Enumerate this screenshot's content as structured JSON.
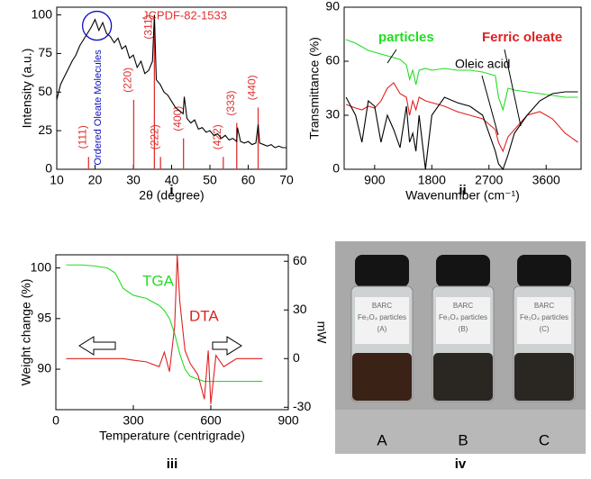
{
  "chart_data": [
    {
      "type": "line",
      "panel": "i",
      "xlabel": "2θ (degree)",
      "ylabel": "Intensity (a.u.)",
      "xlim": [
        10,
        70
      ],
      "xticks": [
        10,
        20,
        30,
        40,
        50,
        60,
        70
      ],
      "ylim": [
        0,
        105
      ],
      "yticks": [
        0,
        25,
        50,
        75,
        100
      ],
      "annotations": [
        "JCPDF-82-1533",
        "Ordered Oleate Molecules"
      ],
      "x": [
        10,
        11,
        12,
        13,
        14,
        15,
        16,
        17,
        18,
        19,
        20,
        21,
        22,
        23,
        24,
        25,
        26,
        27,
        28,
        29,
        30,
        31,
        32,
        33,
        34,
        35,
        35.5,
        36,
        37,
        38,
        39,
        40,
        41,
        42,
        43,
        43.3,
        44,
        45,
        46,
        47,
        48,
        49,
        50,
        51,
        52,
        53,
        54,
        55,
        56,
        57,
        57.2,
        58,
        59,
        60,
        61,
        62,
        62.6,
        63,
        64,
        65,
        66,
        67,
        68,
        69,
        70
      ],
      "series": [
        {
          "color": "#000000",
          "values": [
            45,
            55,
            60,
            65,
            70,
            74,
            80,
            84,
            88,
            92,
            97,
            90,
            95,
            88,
            86,
            82,
            85,
            78,
            80,
            72,
            74,
            66,
            70,
            62,
            64,
            70,
            100,
            58,
            55,
            50,
            48,
            44,
            40,
            38,
            36,
            47,
            33,
            30,
            32,
            26,
            27,
            24,
            25,
            22,
            23,
            20,
            22,
            19,
            20,
            18,
            27,
            18,
            17,
            18,
            16,
            17,
            29,
            17,
            16,
            15,
            16,
            14,
            15,
            14,
            14
          ]
        }
      ],
      "references": {
        "color": "#e03030",
        "x": [
          18.3,
          30.1,
          35.5,
          37.1,
          43.1,
          53.5,
          57.0,
          62.6
        ],
        "values": [
          8,
          45,
          100,
          8,
          20,
          8,
          30,
          40
        ],
        "labels": [
          "(111)",
          "(220)",
          "(311)",
          "(222)",
          "(400)",
          "(422)",
          "(333)",
          "(440)"
        ]
      }
    },
    {
      "type": "line",
      "panel": "ii",
      "xlabel": "Wavenumber (cm⁻¹)",
      "ylabel": "Transmittance (%)",
      "xlim": [
        420,
        4150
      ],
      "xticks": [
        900,
        1800,
        2700,
        3600
      ],
      "ylim": [
        0,
        90
      ],
      "yticks": [
        0,
        30,
        60,
        90
      ],
      "x": [
        450,
        600,
        700,
        800,
        900,
        1000,
        1100,
        1200,
        1300,
        1400,
        1450,
        1500,
        1550,
        1600,
        1700,
        1800,
        2000,
        2200,
        2400,
        2600,
        2800,
        2850,
        2920,
        3000,
        3100,
        3300,
        3500,
        3700,
        3900,
        4100
      ],
      "series": [
        {
          "name": "particles",
          "color": "#22dd22",
          "values": [
            72,
            70,
            68,
            66,
            65,
            64,
            63,
            62,
            61,
            58,
            50,
            55,
            47,
            55,
            56,
            55,
            56,
            55,
            55,
            54,
            52,
            40,
            33,
            45,
            44,
            43,
            42,
            41,
            40,
            40
          ]
        },
        {
          "name": "Ferric oleate",
          "color": "#e02020",
          "values": [
            36,
            34,
            33,
            35,
            34,
            38,
            45,
            48,
            42,
            40,
            30,
            38,
            33,
            40,
            38,
            37,
            35,
            32,
            30,
            28,
            22,
            15,
            10,
            18,
            22,
            30,
            32,
            28,
            20,
            15
          ]
        },
        {
          "name": "Oleic acid",
          "color": "#000000",
          "values": [
            40,
            30,
            15,
            38,
            35,
            15,
            30,
            22,
            12,
            35,
            15,
            20,
            10,
            30,
            0,
            30,
            40,
            37,
            35,
            30,
            10,
            3,
            0,
            8,
            20,
            30,
            38,
            42,
            43,
            43
          ]
        }
      ]
    },
    {
      "type": "line",
      "panel": "iii",
      "xlabel": "Temperature (centrigrade)",
      "ylabel": "Weight change (%)",
      "y2label": "mW",
      "xlim": [
        0,
        900
      ],
      "xticks": [
        0,
        300,
        600,
        900
      ],
      "ylim": [
        86,
        101.3
      ],
      "yticks": [
        90,
        95,
        100
      ],
      "y2lim": [
        -31.5,
        64
      ],
      "y2ticks": [
        -30,
        0,
        30,
        60
      ],
      "x": [
        40,
        100,
        150,
        200,
        230,
        260,
        300,
        350,
        400,
        420,
        440,
        460,
        470,
        480,
        500,
        520,
        550,
        575,
        590,
        600,
        620,
        650,
        700,
        800
      ],
      "series": [
        {
          "name": "TGA",
          "color": "#22dd22",
          "values": [
            100.3,
            100.3,
            100.2,
            100,
            99.5,
            98,
            97.3,
            97,
            96.3,
            95.8,
            95,
            93.5,
            92.5,
            91.5,
            90,
            89.3,
            89,
            88.8,
            88.8,
            88.8,
            88.8,
            88.8,
            88.8,
            88.8
          ]
        },
        {
          "name": "DTA",
          "color": "#e02020",
          "axis": "y2",
          "values": [
            0,
            0,
            0,
            0,
            0,
            0,
            -1,
            -2,
            -5,
            4,
            -8,
            20,
            64,
            35,
            5,
            -3,
            -10,
            -25,
            5,
            -28,
            2,
            -5,
            0,
            0
          ]
        }
      ]
    }
  ],
  "photo": {
    "panel": "iv",
    "vials": [
      {
        "lines": [
          "BARC",
          "Fe₃O₄ particles",
          "(A)"
        ],
        "label": "A"
      },
      {
        "lines": [
          "BARC",
          "Fe₃O₄ particles",
          "(B)"
        ],
        "label": "B"
      },
      {
        "lines": [
          "BARC",
          "Fe₃O₄ particles",
          "(C)"
        ],
        "label": "C"
      }
    ]
  }
}
